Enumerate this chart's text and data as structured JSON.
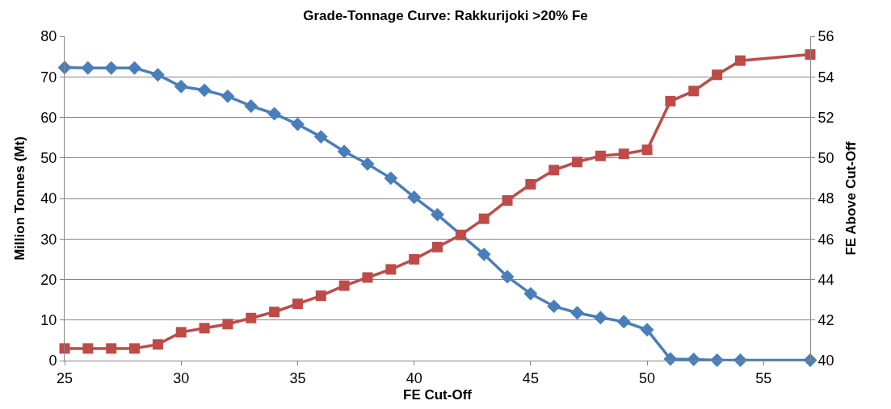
{
  "chart_data": {
    "type": "line",
    "title": "Grade-Tonnage Curve: Rakkurijoki >20% Fe",
    "xlabel": "FE Cut-Off",
    "ylabel": "Million Tonnes (Mt)",
    "y2label": "FE Above Cut-Off",
    "x": [
      25,
      26,
      27,
      28,
      29,
      30,
      31,
      32,
      33,
      34,
      35,
      36,
      37,
      38,
      39,
      40,
      41,
      42,
      43,
      44,
      45,
      46,
      47,
      48,
      49,
      50,
      51,
      52,
      53,
      54,
      57
    ],
    "series": [
      {
        "color": "#4a7ebb",
        "marker": "diamond",
        "values": [
          72.3,
          72.2,
          72.2,
          72.2,
          70.5,
          67.6,
          66.7,
          65.2,
          62.8,
          60.9,
          58.3,
          55.2,
          51.6,
          48.5,
          45.0,
          40.3,
          36.0,
          null,
          26.2,
          20.7,
          16.5,
          13.4,
          11.8,
          10.6,
          9.6,
          7.6,
          0.4,
          0.3,
          0.1,
          0.1,
          0.1
        ]
      },
      {
        "color": "#be4b48",
        "marker": "square",
        "axis": "y2",
        "values": [
          40.6,
          40.6,
          40.6,
          40.6,
          40.8,
          41.4,
          41.6,
          41.8,
          42.1,
          42.4,
          42.8,
          43.2,
          43.7,
          44.1,
          44.5,
          45.0,
          45.6,
          46.2,
          47.0,
          47.9,
          48.7,
          49.4,
          49.8,
          50.1,
          50.2,
          50.4,
          52.8,
          53.3,
          54.1,
          54.8,
          55.1
        ]
      }
    ],
    "xlim": [
      25,
      57
    ],
    "xticks": [
      25,
      30,
      35,
      40,
      45,
      50,
      55
    ],
    "ylim": [
      0,
      80
    ],
    "yticks": [
      0,
      10,
      20,
      30,
      40,
      50,
      60,
      70,
      80
    ],
    "y2lim": [
      40,
      56
    ],
    "y2ticks": [
      40,
      42,
      44,
      46,
      48,
      50,
      52,
      54,
      56
    ],
    "grid": "y",
    "legend": false
  }
}
